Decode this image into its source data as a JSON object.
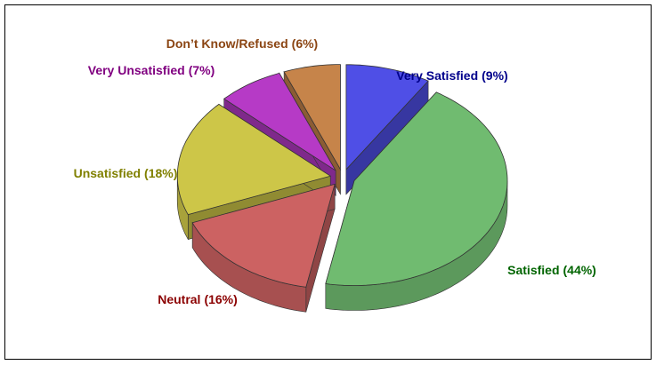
{
  "chart_data": {
    "type": "pie",
    "categories": [
      "Very Satisfied",
      "Satisfied",
      "Neutral",
      "Unsatisfied",
      "Very Unsatisfied",
      "Don’t Know/Refused"
    ],
    "values": [
      9,
      44,
      16,
      18,
      7,
      6
    ],
    "value_labels": [
      "(9%)",
      "(44%)",
      "(16%)",
      "(18%)",
      "(7%)",
      "(6%)"
    ],
    "colors": [
      "#4f4fe6",
      "#70bb70",
      "#cc6262",
      "#cdc648",
      "#b63ac6",
      "#c6844a"
    ],
    "label_colors": [
      "#00008b",
      "#006400",
      "#8b0000",
      "#808000",
      "#800080",
      "#8b4513"
    ]
  }
}
